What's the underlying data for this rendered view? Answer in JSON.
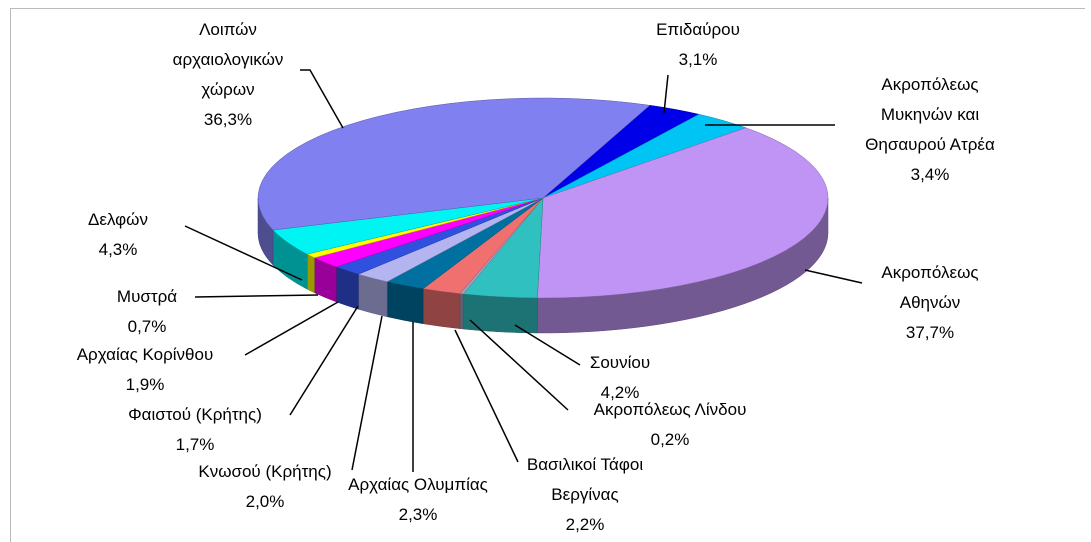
{
  "chart_data": {
    "type": "pie3d",
    "categories": [
      "Επιδαύρου",
      "Ακροπόλεως Μυκηνών και Θησαυρού Ατρέα",
      "Ακροπόλεως Αθηνών",
      "Σουνίου",
      "Ακροπόλεως Λίνδου",
      "Βασιλικοί Τάφοι Βεργίνας",
      "Αρχαίας Ολυμπίας",
      "Κνωσού (Κρήτης)",
      "Φαιστού (Κρήτης)",
      "Αρχαίας Κορίνθου",
      "Μυστρά",
      "Δελφών",
      "Λοιπών αρχαιολογικών χώρων"
    ],
    "values": [
      3.1,
      3.4,
      37.7,
      4.2,
      0.2,
      2.2,
      2.3,
      2.0,
      1.7,
      1.9,
      0.7,
      4.3,
      36.3
    ],
    "value_labels": [
      "3,1%",
      "3,4%",
      "37,7%",
      "4,2%",
      "0,2%",
      "2,2%",
      "2,3%",
      "2,0%",
      "1,7%",
      "1,9%",
      "0,7%",
      "4,3%",
      "36,3%"
    ],
    "colors": [
      "#0000e8",
      "#00c4f4",
      "#c094f4",
      "#30c0c0",
      "#a0a0c0",
      "#f07070",
      "#0070a0",
      "#b4b4f0",
      "#3050e0",
      "#ff00ff",
      "#ffff00",
      "#00f4f4",
      "#8080f0"
    ]
  }
}
